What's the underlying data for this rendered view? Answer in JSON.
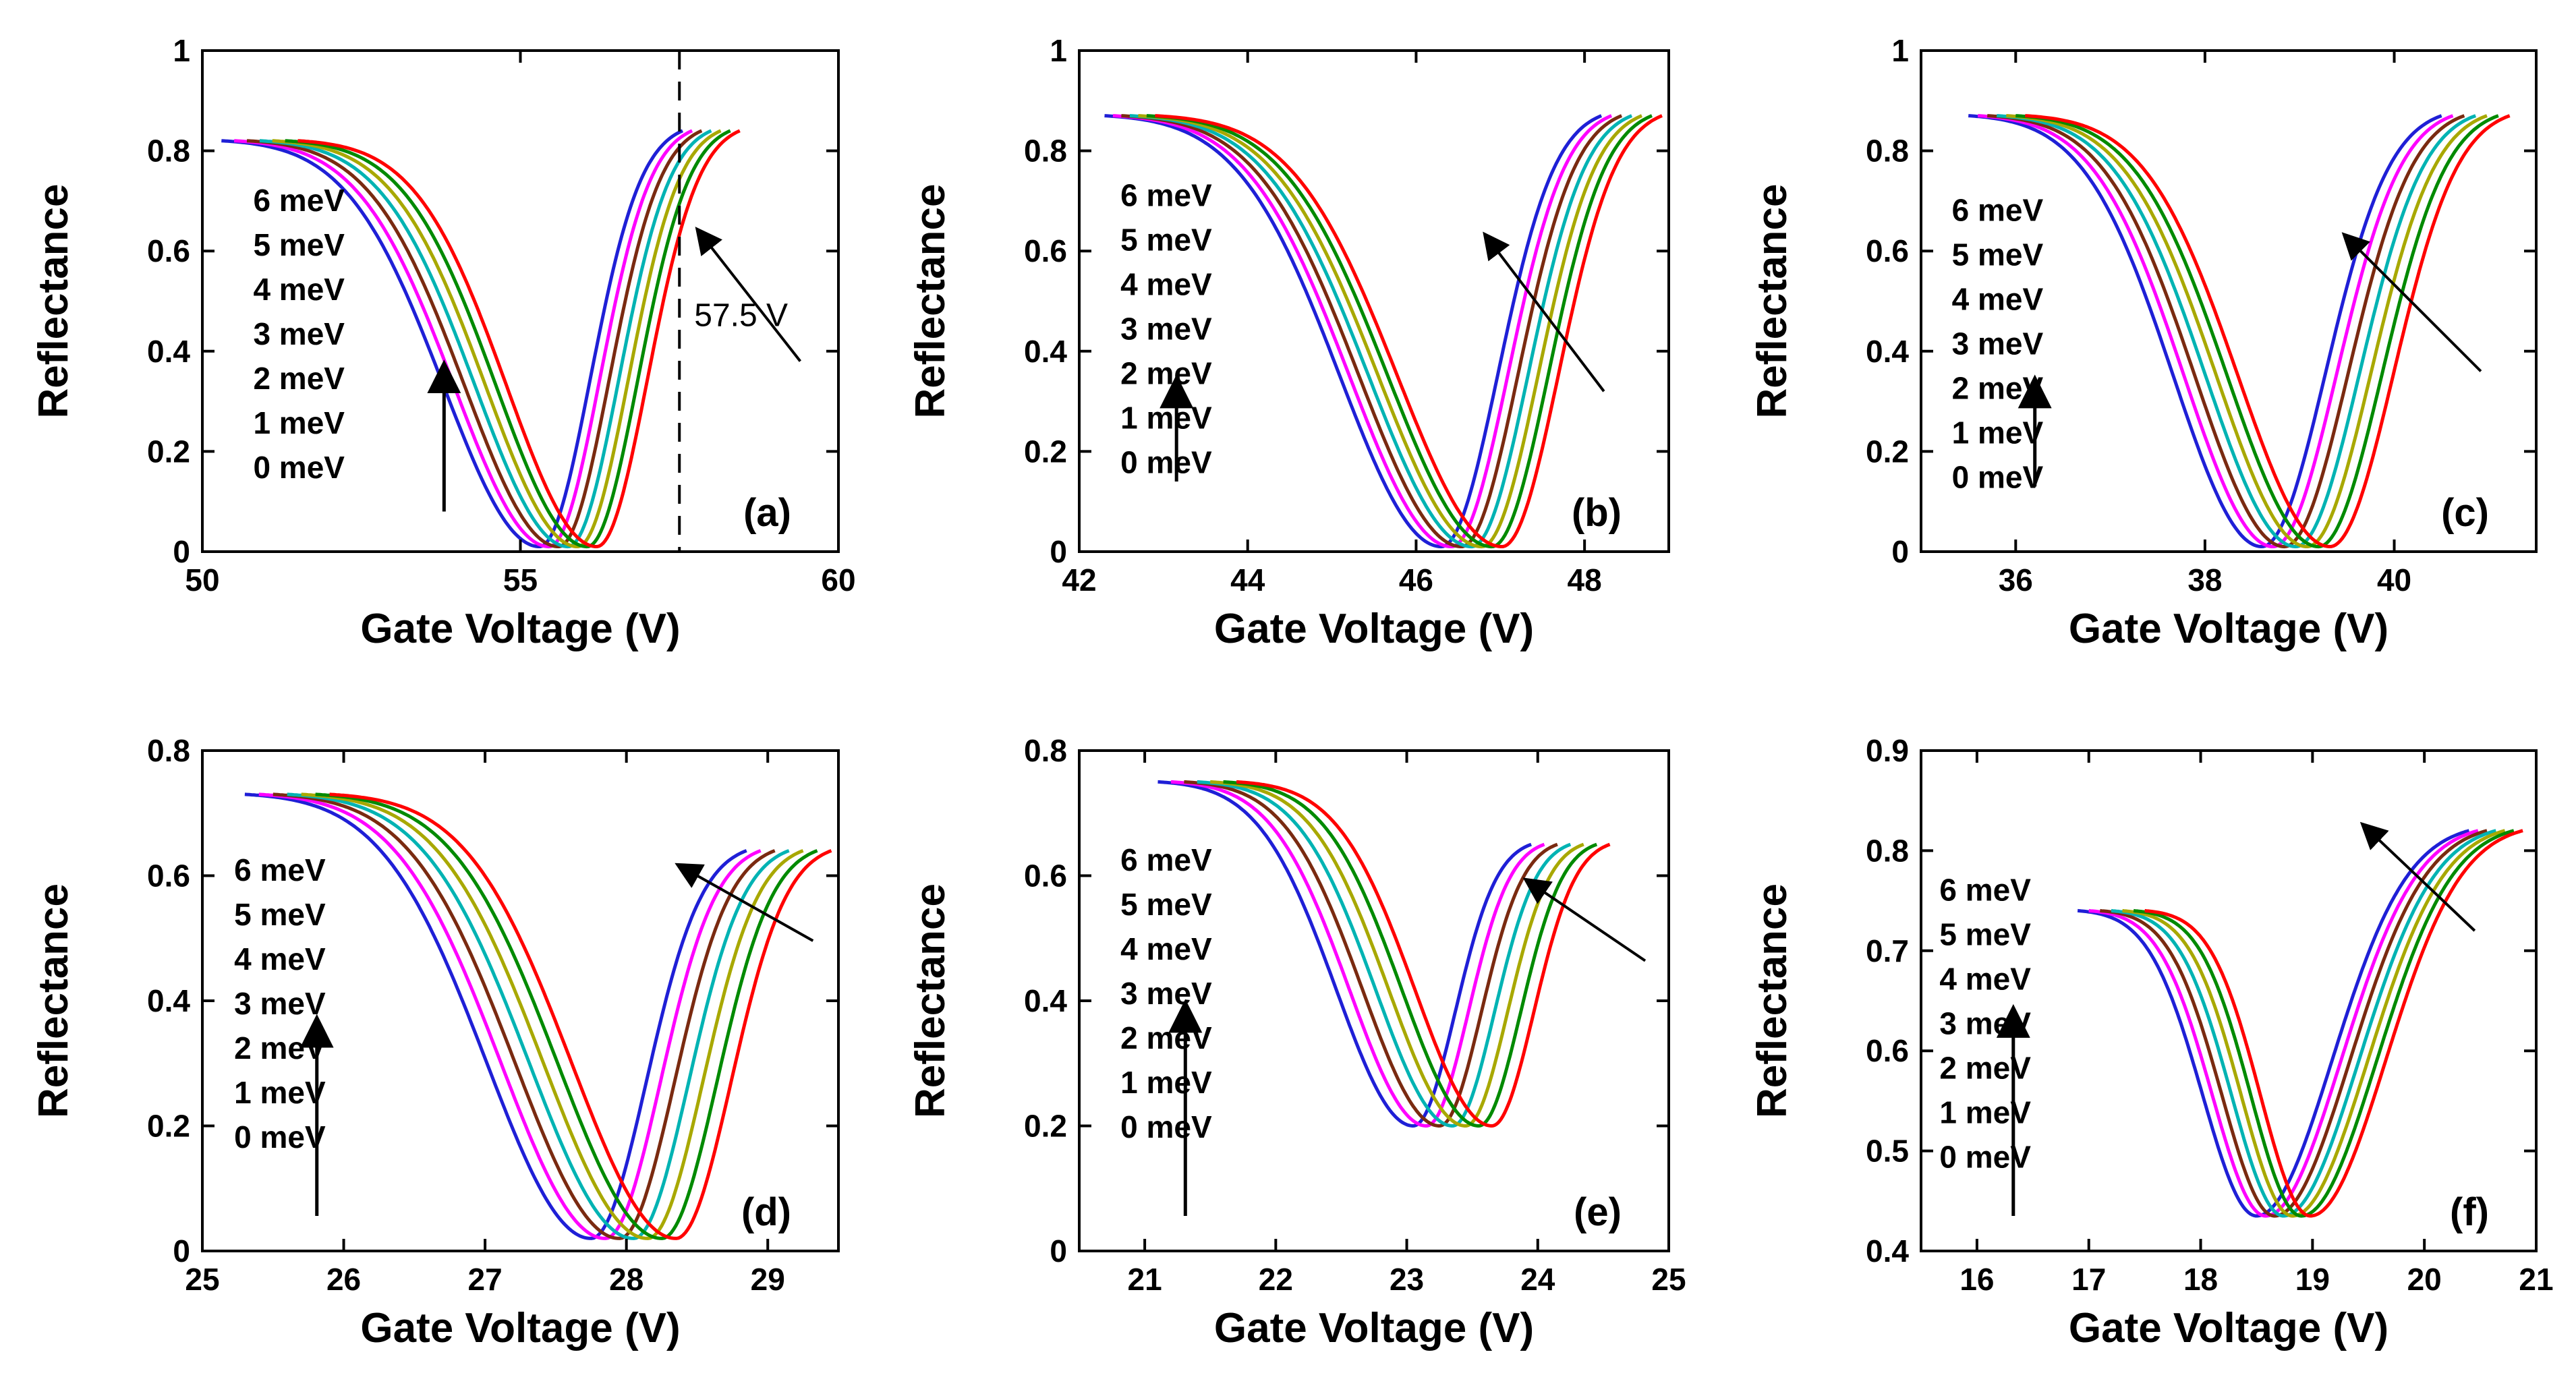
{
  "figure": {
    "curve_colors": [
      "#1f1fd6",
      "#ff00ff",
      "#7a2a10",
      "#00b3b3",
      "#a8a800",
      "#008a00",
      "#ff0000"
    ],
    "arrow_color": "#000000",
    "axis_color": "#000000"
  },
  "chart_data": [
    {
      "type": "line",
      "panel_label": "(a)",
      "xlabel": "Gate Voltage (V)",
      "ylabel": "Reflectance",
      "xlim": [
        50,
        60
      ],
      "ylim": [
        0,
        1
      ],
      "xticks": [
        50,
        55,
        60
      ],
      "xtick_labels": [
        "50",
        "55",
        "60"
      ],
      "yticks": [
        0,
        0.2,
        0.4,
        0.6,
        0.8,
        1
      ],
      "ytick_labels": [
        "0",
        "0.2",
        "0.4",
        "0.6",
        "0.8",
        "1"
      ],
      "legend": [
        "6 meV",
        "5 meV",
        "4 meV",
        "3 meV",
        "2 meV",
        "1 meV",
        "0 meV"
      ],
      "vline": {
        "x": 57.5,
        "label": "57.5 V"
      },
      "series": [
        {
          "name": "0 meV",
          "x_start": 50.3,
          "x_min": 55.3,
          "x_end": 57.55,
          "y_start": 0.82,
          "y_min": 0.01,
          "y_end": 0.84
        },
        {
          "name": "1 meV",
          "x_start": 50.5,
          "x_min": 55.45,
          "x_end": 57.7,
          "y_start": 0.82,
          "y_min": 0.01,
          "y_end": 0.84
        },
        {
          "name": "2 meV",
          "x_start": 50.7,
          "x_min": 55.6,
          "x_end": 57.85,
          "y_start": 0.82,
          "y_min": 0.01,
          "y_end": 0.84
        },
        {
          "name": "3 meV",
          "x_start": 50.9,
          "x_min": 55.75,
          "x_end": 58.0,
          "y_start": 0.82,
          "y_min": 0.01,
          "y_end": 0.84
        },
        {
          "name": "4 meV",
          "x_start": 51.1,
          "x_min": 55.9,
          "x_end": 58.15,
          "y_start": 0.82,
          "y_min": 0.01,
          "y_end": 0.84
        },
        {
          "name": "5 meV",
          "x_start": 51.3,
          "x_min": 56.05,
          "x_end": 58.3,
          "y_start": 0.82,
          "y_min": 0.01,
          "y_end": 0.84
        },
        {
          "name": "6 meV",
          "x_start": 51.5,
          "x_min": 56.2,
          "x_end": 58.45,
          "y_start": 0.82,
          "y_min": 0.01,
          "y_end": 0.84
        }
      ]
    },
    {
      "type": "line",
      "panel_label": "(b)",
      "xlabel": "Gate Voltage (V)",
      "ylabel": "Reflectance",
      "xlim": [
        42,
        49
      ],
      "ylim": [
        0,
        1
      ],
      "xticks": [
        42,
        44,
        46,
        48
      ],
      "xtick_labels": [
        "42",
        "44",
        "46",
        "48"
      ],
      "yticks": [
        0,
        0.2,
        0.4,
        0.6,
        0.8,
        1
      ],
      "ytick_labels": [
        "0",
        "0.2",
        "0.4",
        "0.6",
        "0.8",
        "1"
      ],
      "legend": [
        "6 meV",
        "5 meV",
        "4 meV",
        "3 meV",
        "2 meV",
        "1 meV",
        "0 meV"
      ],
      "series": [
        {
          "name": "0 meV",
          "x_start": 42.3,
          "x_min": 46.3,
          "x_end": 48.2,
          "y_start": 0.87,
          "y_min": 0.01,
          "y_end": 0.87
        },
        {
          "name": "1 meV",
          "x_start": 42.4,
          "x_min": 46.42,
          "x_end": 48.32,
          "y_start": 0.87,
          "y_min": 0.01,
          "y_end": 0.87
        },
        {
          "name": "2 meV",
          "x_start": 42.5,
          "x_min": 46.54,
          "x_end": 48.44,
          "y_start": 0.87,
          "y_min": 0.01,
          "y_end": 0.87
        },
        {
          "name": "3 meV",
          "x_start": 42.6,
          "x_min": 46.66,
          "x_end": 48.56,
          "y_start": 0.87,
          "y_min": 0.01,
          "y_end": 0.87
        },
        {
          "name": "4 meV",
          "x_start": 42.7,
          "x_min": 46.78,
          "x_end": 48.68,
          "y_start": 0.87,
          "y_min": 0.01,
          "y_end": 0.87
        },
        {
          "name": "5 meV",
          "x_start": 42.8,
          "x_min": 46.9,
          "x_end": 48.8,
          "y_start": 0.87,
          "y_min": 0.01,
          "y_end": 0.87
        },
        {
          "name": "6 meV",
          "x_start": 42.9,
          "x_min": 47.02,
          "x_end": 48.92,
          "y_start": 0.87,
          "y_min": 0.01,
          "y_end": 0.87
        }
      ]
    },
    {
      "type": "line",
      "panel_label": "(c)",
      "xlabel": "Gate Voltage (V)",
      "ylabel": "Reflectance",
      "xlim": [
        35,
        41.5
      ],
      "ylim": [
        0,
        1
      ],
      "xticks": [
        36,
        38,
        40
      ],
      "xtick_labels": [
        "36",
        "38",
        "40"
      ],
      "yticks": [
        0,
        0.2,
        0.4,
        0.6,
        0.8,
        1
      ],
      "ytick_labels": [
        "0",
        "0.2",
        "0.4",
        "0.6",
        "0.8",
        "1"
      ],
      "legend": [
        "6 meV",
        "5 meV",
        "4 meV",
        "3 meV",
        "2 meV",
        "1 meV",
        "0 meV"
      ],
      "series": [
        {
          "name": "0 meV",
          "x_start": 35.5,
          "x_min": 38.6,
          "x_end": 40.5,
          "y_start": 0.87,
          "y_min": 0.01,
          "y_end": 0.87
        },
        {
          "name": "1 meV",
          "x_start": 35.6,
          "x_min": 38.72,
          "x_end": 40.62,
          "y_start": 0.87,
          "y_min": 0.01,
          "y_end": 0.87
        },
        {
          "name": "2 meV",
          "x_start": 35.7,
          "x_min": 38.84,
          "x_end": 40.74,
          "y_start": 0.87,
          "y_min": 0.01,
          "y_end": 0.87
        },
        {
          "name": "3 meV",
          "x_start": 35.8,
          "x_min": 38.96,
          "x_end": 40.86,
          "y_start": 0.87,
          "y_min": 0.01,
          "y_end": 0.87
        },
        {
          "name": "4 meV",
          "x_start": 35.9,
          "x_min": 39.08,
          "x_end": 40.98,
          "y_start": 0.87,
          "y_min": 0.01,
          "y_end": 0.87
        },
        {
          "name": "5 meV",
          "x_start": 36.0,
          "x_min": 39.2,
          "x_end": 41.1,
          "y_start": 0.87,
          "y_min": 0.01,
          "y_end": 0.87
        },
        {
          "name": "6 meV",
          "x_start": 36.1,
          "x_min": 39.32,
          "x_end": 41.22,
          "y_start": 0.87,
          "y_min": 0.01,
          "y_end": 0.87
        }
      ]
    },
    {
      "type": "line",
      "panel_label": "(d)",
      "xlabel": "Gate Voltage (V)",
      "ylabel": "Reflectance",
      "xlim": [
        25,
        29.5
      ],
      "ylim": [
        0,
        0.8
      ],
      "xticks": [
        25,
        26,
        27,
        28,
        29
      ],
      "xtick_labels": [
        "25",
        "26",
        "27",
        "28",
        "29"
      ],
      "yticks": [
        0,
        0.2,
        0.4,
        0.6,
        0.8
      ],
      "ytick_labels": [
        "0",
        "0.2",
        "0.4",
        "0.6",
        "0.8"
      ],
      "legend": [
        "6 meV",
        "5 meV",
        "4 meV",
        "3 meV",
        "2 meV",
        "1 meV",
        "0 meV"
      ],
      "series": [
        {
          "name": "0 meV",
          "x_start": 25.3,
          "x_min": 27.75,
          "x_end": 28.85,
          "y_start": 0.73,
          "y_min": 0.02,
          "y_end": 0.64
        },
        {
          "name": "1 meV",
          "x_start": 25.4,
          "x_min": 27.85,
          "x_end": 28.95,
          "y_start": 0.73,
          "y_min": 0.02,
          "y_end": 0.64
        },
        {
          "name": "2 meV",
          "x_start": 25.5,
          "x_min": 27.95,
          "x_end": 29.05,
          "y_start": 0.73,
          "y_min": 0.02,
          "y_end": 0.64
        },
        {
          "name": "3 meV",
          "x_start": 25.6,
          "x_min": 28.05,
          "x_end": 29.15,
          "y_start": 0.73,
          "y_min": 0.02,
          "y_end": 0.64
        },
        {
          "name": "4 meV",
          "x_start": 25.7,
          "x_min": 28.15,
          "x_end": 29.25,
          "y_start": 0.73,
          "y_min": 0.02,
          "y_end": 0.64
        },
        {
          "name": "5 meV",
          "x_start": 25.8,
          "x_min": 28.25,
          "x_end": 29.35,
          "y_start": 0.73,
          "y_min": 0.02,
          "y_end": 0.64
        },
        {
          "name": "6 meV",
          "x_start": 25.9,
          "x_min": 28.35,
          "x_end": 29.45,
          "y_start": 0.73,
          "y_min": 0.02,
          "y_end": 0.64
        }
      ]
    },
    {
      "type": "line",
      "panel_label": "(e)",
      "xlabel": "Gate Voltage (V)",
      "ylabel": "Reflectance",
      "xlim": [
        20.5,
        25
      ],
      "ylim": [
        0,
        0.8
      ],
      "xticks": [
        21,
        22,
        23,
        24,
        25
      ],
      "xtick_labels": [
        "21",
        "22",
        "23",
        "24",
        "25"
      ],
      "yticks": [
        0,
        0.2,
        0.4,
        0.6,
        0.8
      ],
      "ytick_labels": [
        "0",
        "0.2",
        "0.4",
        "0.6",
        "0.8"
      ],
      "legend": [
        "6 meV",
        "5 meV",
        "4 meV",
        "3 meV",
        "2 meV",
        "1 meV",
        "0 meV"
      ],
      "series": [
        {
          "name": "0 meV",
          "x_start": 21.1,
          "x_min": 23.05,
          "x_end": 23.95,
          "y_start": 0.75,
          "y_min": 0.2,
          "y_end": 0.65
        },
        {
          "name": "1 meV",
          "x_start": 21.2,
          "x_min": 23.15,
          "x_end": 24.05,
          "y_start": 0.75,
          "y_min": 0.2,
          "y_end": 0.65
        },
        {
          "name": "2 meV",
          "x_start": 21.3,
          "x_min": 23.25,
          "x_end": 24.15,
          "y_start": 0.75,
          "y_min": 0.2,
          "y_end": 0.65
        },
        {
          "name": "3 meV",
          "x_start": 21.4,
          "x_min": 23.35,
          "x_end": 24.25,
          "y_start": 0.75,
          "y_min": 0.2,
          "y_end": 0.65
        },
        {
          "name": "4 meV",
          "x_start": 21.5,
          "x_min": 23.45,
          "x_end": 24.35,
          "y_start": 0.75,
          "y_min": 0.2,
          "y_end": 0.65
        },
        {
          "name": "5 meV",
          "x_start": 21.6,
          "x_min": 23.55,
          "x_end": 24.45,
          "y_start": 0.75,
          "y_min": 0.2,
          "y_end": 0.65
        },
        {
          "name": "6 meV",
          "x_start": 21.7,
          "x_min": 23.65,
          "x_end": 24.55,
          "y_start": 0.75,
          "y_min": 0.2,
          "y_end": 0.65
        }
      ]
    },
    {
      "type": "line",
      "panel_label": "(f)",
      "xlabel": "Gate Voltage (V)",
      "ylabel": "Reflectance",
      "xlim": [
        15.5,
        21
      ],
      "ylim": [
        0.4,
        0.9
      ],
      "xticks": [
        16,
        17,
        18,
        19,
        20,
        21
      ],
      "xtick_labels": [
        "16",
        "17",
        "18",
        "19",
        "20",
        "21"
      ],
      "yticks": [
        0.4,
        0.5,
        0.6,
        0.7,
        0.8,
        0.9
      ],
      "ytick_labels": [
        "0.4",
        "0.5",
        "0.6",
        "0.7",
        "0.8",
        "0.9"
      ],
      "legend": [
        "6 meV",
        "5 meV",
        "4 meV",
        "3 meV",
        "2 meV",
        "1 meV",
        "0 meV"
      ],
      "series": [
        {
          "name": "0 meV",
          "x_start": 16.9,
          "x_min": 18.5,
          "x_end": 20.4,
          "y_start": 0.74,
          "y_min": 0.435,
          "y_end": 0.82
        },
        {
          "name": "1 meV",
          "x_start": 17.0,
          "x_min": 18.58,
          "x_end": 20.48,
          "y_start": 0.74,
          "y_min": 0.435,
          "y_end": 0.82
        },
        {
          "name": "2 meV",
          "x_start": 17.1,
          "x_min": 18.66,
          "x_end": 20.56,
          "y_start": 0.74,
          "y_min": 0.435,
          "y_end": 0.82
        },
        {
          "name": "3 meV",
          "x_start": 17.2,
          "x_min": 18.74,
          "x_end": 20.64,
          "y_start": 0.74,
          "y_min": 0.435,
          "y_end": 0.82
        },
        {
          "name": "4 meV",
          "x_start": 17.3,
          "x_min": 18.82,
          "x_end": 20.72,
          "y_start": 0.74,
          "y_min": 0.435,
          "y_end": 0.82
        },
        {
          "name": "5 meV",
          "x_start": 17.4,
          "x_min": 18.9,
          "x_end": 20.8,
          "y_start": 0.74,
          "y_min": 0.435,
          "y_end": 0.82
        },
        {
          "name": "6 meV",
          "x_start": 17.5,
          "x_min": 18.98,
          "x_end": 20.88,
          "y_start": 0.74,
          "y_min": 0.435,
          "y_end": 0.82
        }
      ]
    }
  ]
}
